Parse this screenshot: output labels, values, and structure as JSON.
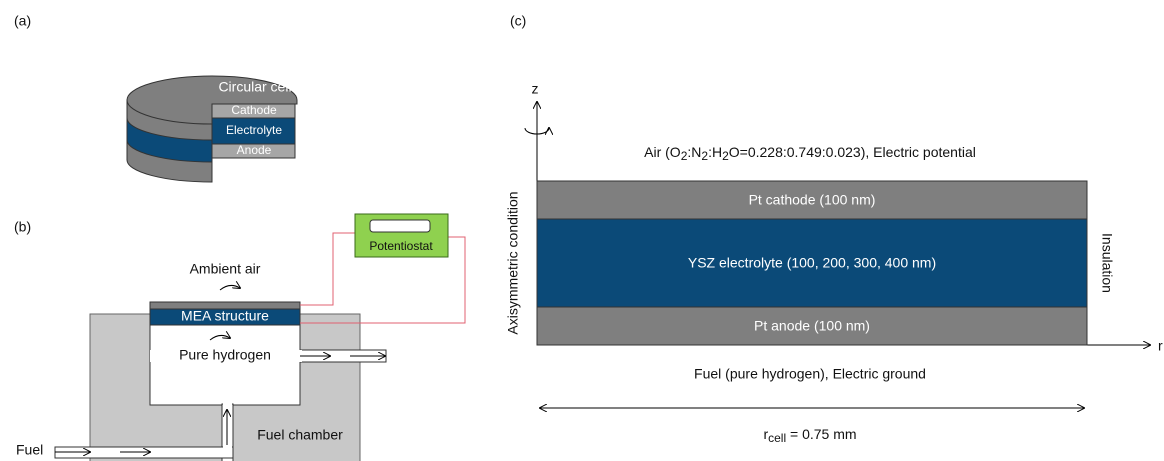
{
  "panel_a": {
    "label": "(a)",
    "title": "Circular cell",
    "layers": [
      "Cathode",
      "Electrolyte",
      "Anode"
    ]
  },
  "panel_b": {
    "label": "(b)",
    "potentiostat": "Potentiostat",
    "ambient": "Ambient air",
    "mea": "MEA structure",
    "hydrogen": "Pure hydrogen",
    "chamber": "Fuel chamber",
    "fuel": "Fuel"
  },
  "panel_c": {
    "label": "(c)",
    "z_axis": "z",
    "r_axis": "r",
    "top_boundary": [
      "Air (O",
      "2",
      ":N",
      "2",
      ":H",
      "2",
      "O=0.228:0.749:0.023), Electric potential"
    ],
    "layers": [
      "Pt cathode (100 nm)",
      "YSZ electrolyte (100, 200, 300, 400 nm)",
      "Pt anode (100 nm)"
    ],
    "left_boundary": "Axisymmetric condition",
    "right_boundary": "Insulation",
    "bottom_boundary": "Fuel (pure hydrogen), Electric ground",
    "radius": [
      "r",
      "cell",
      " = 0.75 mm"
    ]
  }
}
